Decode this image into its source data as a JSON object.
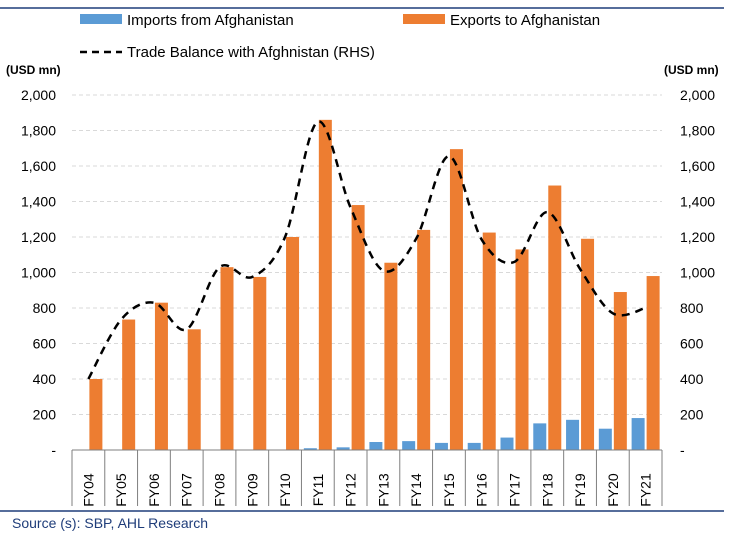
{
  "source": "Source (s): SBP, AHL Research",
  "colors": {
    "imports": "#5b9bd5",
    "exports": "#ed7d31",
    "balance": "#000000",
    "rule": "#1f3d7a",
    "grid": "#d9d9d9"
  },
  "chart_data": {
    "type": "bar",
    "categories": [
      "FY04",
      "FY05",
      "FY06",
      "FY07",
      "FY08",
      "FY09",
      "FY10",
      "FY11",
      "FY12",
      "FY13",
      "FY14",
      "FY15",
      "FY16",
      "FY17",
      "FY18",
      "FY19",
      "FY20",
      "FY21"
    ],
    "series": [
      {
        "name": "Imports from Afghanistan",
        "type": "bar",
        "axis": "left",
        "values": [
          0,
          0,
          0,
          0,
          0,
          0,
          0,
          10,
          15,
          45,
          50,
          40,
          40,
          70,
          150,
          170,
          120,
          180
        ]
      },
      {
        "name": "Exports to Afghanistan",
        "type": "bar",
        "axis": "left",
        "values": [
          400,
          735,
          830,
          680,
          1030,
          975,
          1200,
          1860,
          1380,
          1055,
          1240,
          1695,
          1225,
          1130,
          1490,
          1190,
          890,
          980
        ]
      },
      {
        "name": "Trade Balance with Afghnistan (RHS)",
        "type": "line",
        "style": "dashed",
        "axis": "right",
        "values": [
          400,
          735,
          830,
          680,
          1030,
          975,
          1200,
          1850,
          1365,
          1010,
          1190,
          1655,
          1185,
          1060,
          1340,
          1020,
          770,
          800
        ]
      }
    ],
    "ylabel_left": "(USD mn)",
    "ylabel_right": "(USD mn)",
    "ylim": [
      0,
      2000
    ],
    "yticks": [
      0,
      200,
      400,
      600,
      800,
      1000,
      1200,
      1400,
      1600,
      1800,
      2000
    ],
    "ytick_labels": [
      "-",
      "200",
      "400",
      "600",
      "800",
      "1,000",
      "1,200",
      "1,400",
      "1,600",
      "1,800",
      "2,000"
    ],
    "grid": true,
    "legend_position": "top"
  }
}
